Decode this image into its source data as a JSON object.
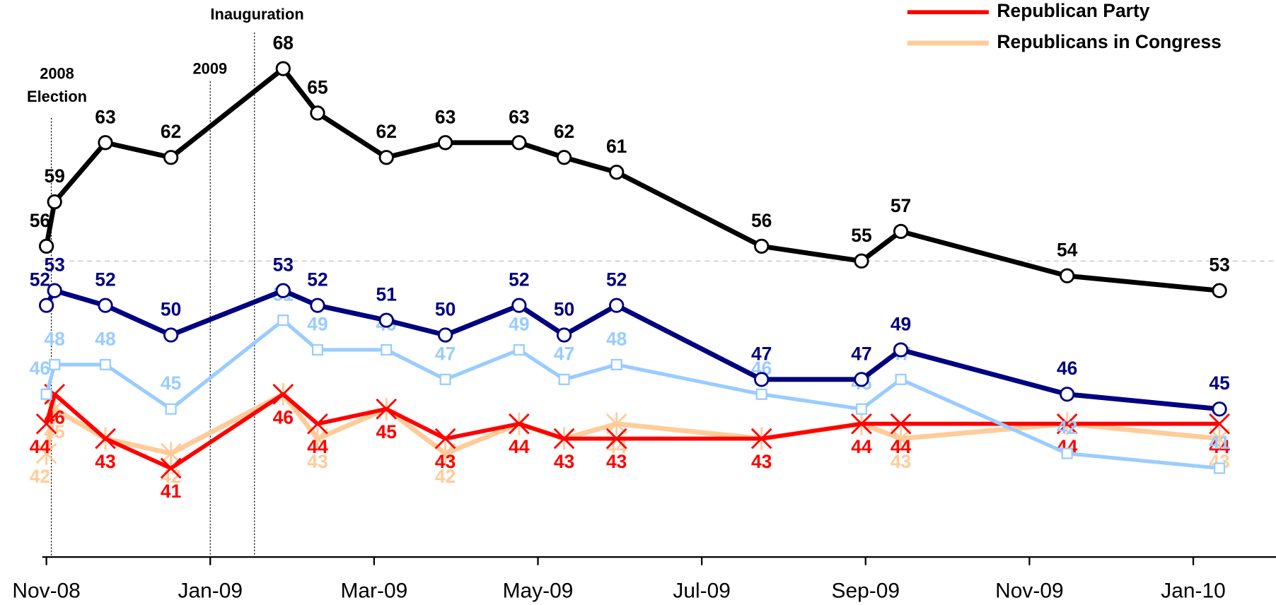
{
  "chart_data": {
    "type": "line",
    "x": [
      0,
      0.1,
      0.72,
      1.52,
      2.89,
      3.31,
      4.15,
      4.87,
      5.77,
      6.32,
      6.96,
      8.73,
      9.95,
      10.43,
      12.46,
      14.32
    ],
    "xlim": [
      -0.05,
      15.01
    ],
    "xticks": [
      {
        "value": 0,
        "label": "Nov-08"
      },
      {
        "value": 2,
        "label": "Jan-09"
      },
      {
        "value": 4,
        "label": "Mar-09"
      },
      {
        "value": 6,
        "label": "May-09"
      },
      {
        "value": 8,
        "label": "Jul-09"
      },
      {
        "value": 10,
        "label": "Sep-09"
      },
      {
        "value": 12,
        "label": "Nov-09"
      },
      {
        "value": 14,
        "label": "Jan-10"
      }
    ],
    "ylim": [
      35,
      70
    ],
    "reference_line": 55,
    "legend": "top-right",
    "annotations": [
      {
        "text": [
          "2008",
          "Election"
        ],
        "x": 0.06
      },
      {
        "text": [
          "2009"
        ],
        "x": 2.0
      },
      {
        "text": [
          "Inauguration"
        ],
        "x": 2.54
      }
    ],
    "series": [
      {
        "color": "#000000",
        "marker": "circle",
        "values": [
          56,
          59,
          63,
          62,
          68,
          65,
          62,
          63,
          63,
          62,
          61,
          56,
          55,
          57,
          54,
          53
        ]
      },
      {
        "color": "#000080",
        "marker": "circle",
        "values": [
          52,
          53,
          52,
          50,
          53,
          52,
          51,
          50,
          52,
          50,
          52,
          47,
          47,
          49,
          46,
          45
        ]
      },
      {
        "color": "#99ccff",
        "marker": "square",
        "values": [
          46,
          48,
          48,
          45,
          51,
          49,
          49,
          47,
          49,
          47,
          48,
          46,
          45,
          47,
          42,
          41
        ]
      },
      {
        "name": "Republican Party",
        "color": "#ff0000",
        "marker": "x",
        "values": [
          44,
          46,
          43,
          41,
          46,
          44,
          45,
          43,
          44,
          43,
          43,
          43,
          44,
          44,
          44,
          44
        ]
      },
      {
        "name": "Republicans in Congress",
        "color": "#ffcc99",
        "marker": "star",
        "values": [
          42,
          45,
          43,
          42,
          46,
          43,
          45,
          42,
          44,
          43,
          44,
          43,
          44,
          43,
          44,
          43
        ]
      }
    ]
  }
}
